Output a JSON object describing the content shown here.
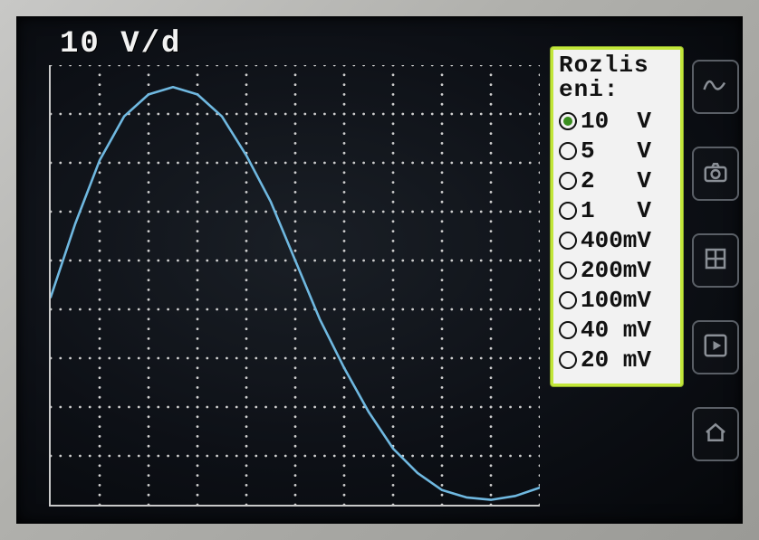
{
  "scale_label": "10 V/d",
  "chart": {
    "type": "line",
    "background_color": "#0e1218",
    "axis_color": "#c9c9c9",
    "grid_divisions_x": 10,
    "grid_divisions_y": 9,
    "subtick_count": 5,
    "grid_dot_color": "#cfcfcf",
    "line_color": "#6fb8e0",
    "line_width": 2.6,
    "xlim": [
      0,
      10
    ],
    "ylim": [
      0,
      9
    ],
    "points": [
      [
        0.0,
        4.25
      ],
      [
        0.5,
        5.75
      ],
      [
        1.0,
        7.05
      ],
      [
        1.5,
        7.95
      ],
      [
        2.0,
        8.4
      ],
      [
        2.5,
        8.55
      ],
      [
        3.0,
        8.4
      ],
      [
        3.5,
        7.95
      ],
      [
        4.0,
        7.15
      ],
      [
        4.5,
        6.2
      ],
      [
        5.0,
        5.0
      ],
      [
        5.5,
        3.8
      ],
      [
        6.0,
        2.8
      ],
      [
        6.5,
        1.9
      ],
      [
        7.0,
        1.15
      ],
      [
        7.5,
        0.65
      ],
      [
        8.0,
        0.3
      ],
      [
        8.5,
        0.15
      ],
      [
        9.0,
        0.1
      ],
      [
        9.5,
        0.18
      ],
      [
        10.0,
        0.35
      ]
    ]
  },
  "menu": {
    "title": "Rozlis\neni:",
    "border_color": "#c2e63a",
    "selected_dot_color": "#3a8f1e",
    "options": [
      {
        "value": "10",
        "unit": "V",
        "selected": true
      },
      {
        "value": "5",
        "unit": "V",
        "selected": false
      },
      {
        "value": "2",
        "unit": "V",
        "selected": false
      },
      {
        "value": "1",
        "unit": "V",
        "selected": false
      },
      {
        "value": "400",
        "unit": "mV",
        "selected": false
      },
      {
        "value": "200",
        "unit": "mV",
        "selected": false
      },
      {
        "value": "100",
        "unit": "mV",
        "selected": false
      },
      {
        "value": "40",
        "unit": "mV",
        "selected": false
      },
      {
        "value": "20",
        "unit": "mV",
        "selected": false
      }
    ]
  },
  "side_buttons": [
    {
      "name": "waveform-icon"
    },
    {
      "name": "camera-icon"
    },
    {
      "name": "grid-icon"
    },
    {
      "name": "play-icon"
    },
    {
      "name": "home-icon"
    }
  ]
}
